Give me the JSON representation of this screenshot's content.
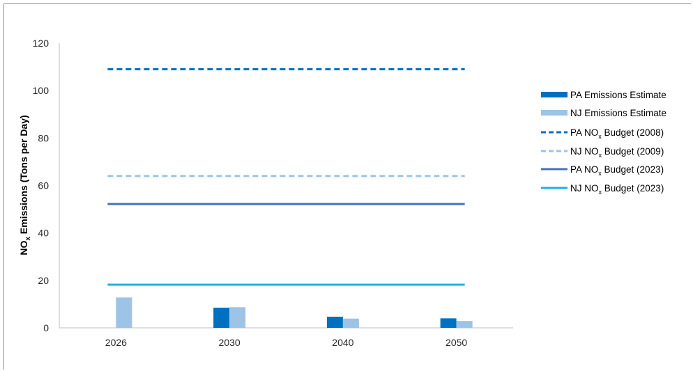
{
  "chart_data": {
    "type": "bar",
    "categories": [
      "2026",
      "2030",
      "2040",
      "2050"
    ],
    "ylabel": "NOx Emissions (Tons per Day)",
    "ylabel_main": "NO",
    "ylabel_sub": "x",
    "ylabel_rest": " Emissions (Tons per Day)",
    "ylim": [
      0,
      120
    ],
    "yticks": [
      "0",
      "20",
      "40",
      "60",
      "80",
      "100",
      "120"
    ],
    "grid": false,
    "legend_position": "right",
    "series": [
      {
        "name": "PA Emissions Estimate",
        "kind": "bar",
        "color": "#0070C0",
        "values": [
          0,
          8.5,
          4.7,
          4.0
        ]
      },
      {
        "name": "NJ Emissions Estimate",
        "kind": "bar",
        "color": "#9DC3E6",
        "values": [
          12.8,
          8.7,
          3.9,
          2.9
        ]
      },
      {
        "name": "PA NOx Budget (2008)",
        "kind": "line",
        "style": "dashed",
        "color": "#0070C0",
        "value": 109
      },
      {
        "name": "NJ NOx Budget (2009)",
        "kind": "line",
        "style": "dashed",
        "color": "#9DC3E6",
        "value": 64
      },
      {
        "name": "PA NOx Budget (2023)",
        "kind": "line",
        "style": "solid",
        "color": "#4472C4",
        "value": 52.2
      },
      {
        "name": "NJ NOx Budget (2023)",
        "kind": "line",
        "style": "solid",
        "color": "#1BB1E7",
        "value": 18.2
      }
    ],
    "legend": [
      {
        "pre": "PA Emissions Estimate",
        "sub": "",
        "post": ""
      },
      {
        "pre": "NJ Emissions Estimate",
        "sub": "",
        "post": ""
      },
      {
        "pre": "PA NO",
        "sub": "x",
        "post": " Budget (2008)"
      },
      {
        "pre": "NJ NO",
        "sub": "x",
        "post": " Budget (2009)"
      },
      {
        "pre": "PA NO",
        "sub": "x",
        "post": " Budget (2023)"
      },
      {
        "pre": "NJ NO",
        "sub": "x",
        "post": " Budget (2023)"
      }
    ]
  }
}
